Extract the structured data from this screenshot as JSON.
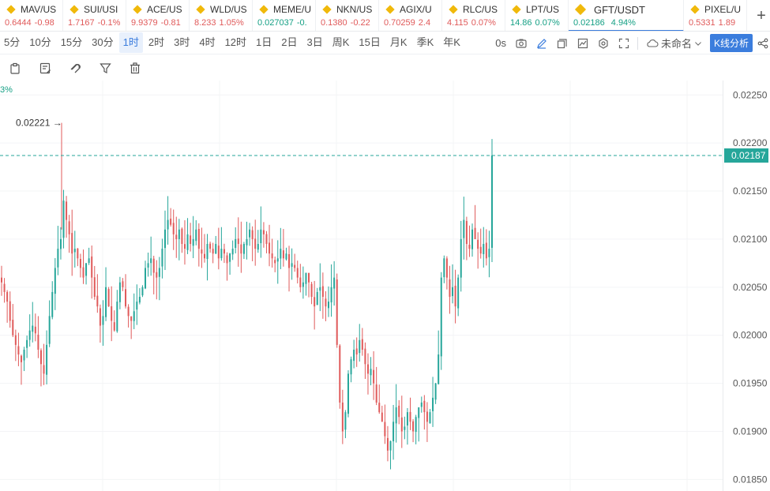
{
  "tickers": [
    {
      "symbol": "MAV/US",
      "price": "0.6444",
      "change": "-0.98",
      "dir": "neg"
    },
    {
      "symbol": "SUI/USI",
      "price": "1.7167",
      "change": "-0.1%",
      "dir": "neg"
    },
    {
      "symbol": "ACE/US",
      "price": "9.9379",
      "change": "-0.81",
      "dir": "neg"
    },
    {
      "symbol": "WLD/US",
      "price": "8.233",
      "change": "1.05%",
      "dir": "neg"
    },
    {
      "symbol": "MEME/U",
      "price": "0.027037",
      "change": "-0.",
      "dir": "pos"
    },
    {
      "symbol": "NKN/US",
      "price": "0.1380",
      "change": "-0.22",
      "dir": "neg"
    },
    {
      "symbol": "AGIX/U",
      "price": "0.70259",
      "change": "2.4",
      "dir": "neg"
    },
    {
      "symbol": "RLC/US",
      "price": "4.115",
      "change": "0.07%",
      "dir": "neg"
    },
    {
      "symbol": "LPT/US",
      "price": "14.86",
      "change": "0.07%",
      "dir": "pos"
    }
  ],
  "active_ticker": {
    "symbol": "GFT/USDT",
    "price": "0.02186",
    "change": "4.94%"
  },
  "last_ticker": {
    "symbol": "PIXEL/U",
    "price": "0.5331",
    "change": "1.89"
  },
  "add_symbol": "+",
  "intervals": [
    "5分",
    "10分",
    "15分",
    "30分",
    "1时",
    "2时",
    "3时",
    "4时",
    "12时",
    "1日",
    "2日",
    "3日",
    "周K",
    "15日",
    "月K",
    "季K",
    "年K"
  ],
  "selected_interval": "1时",
  "toolbar": {
    "countdown": "0s",
    "layout_name": "未命名",
    "analysis_button": "K线分析"
  },
  "chart_data": {
    "type": "candlestick",
    "symbol": "GFT/USDT",
    "interval": "1时",
    "y_ticks": [
      0.0225,
      0.022,
      0.0215,
      0.021,
      0.0205,
      0.02,
      0.0195,
      0.019,
      0.0185
    ],
    "y_tick_labels": [
      "0.02250",
      "0.02200",
      "0.02150",
      "0.02100",
      "0.02050",
      "0.02000",
      "0.01950",
      "0.01900",
      "0.01850"
    ],
    "ylim": [
      0.01838,
      0.02265
    ],
    "last_price": 0.02187,
    "last_price_label": "0.02187",
    "max_marker": {
      "value": 0.02221,
      "label": "0.02221"
    },
    "partial_left_label": "3%",
    "colors": {
      "up": "#26a69a",
      "down": "#e05a5a",
      "last": "#26a69a"
    },
    "closes": [
      0.02055,
      0.02045,
      0.02035,
      0.02015,
      0.02,
      0.0199,
      0.0198,
      0.01972,
      0.01985,
      0.01995,
      0.02005,
      0.0201,
      0.02002,
      0.01985,
      0.0197,
      0.0196,
      0.0199,
      0.0202,
      0.02045,
      0.0207,
      0.0209,
      0.021,
      0.0214,
      0.0212,
      0.02105,
      0.02085,
      0.0209,
      0.0208,
      0.0207,
      0.0206,
      0.02075,
      0.0208,
      0.0206,
      0.0204,
      0.0203,
      0.0201,
      0.0202,
      0.0205,
      0.0203,
      0.02015,
      0.02005,
      0.02035,
      0.02055,
      0.0205,
      0.0203,
      0.0202,
      0.02015,
      0.02025,
      0.02035,
      0.0204,
      0.0205,
      0.0207,
      0.02075,
      0.0208,
      0.02065,
      0.0206,
      0.0207,
      0.0209,
      0.0211,
      0.0212,
      0.02115,
      0.02105,
      0.021,
      0.0211,
      0.02095,
      0.0209,
      0.02105,
      0.02095,
      0.021,
      0.0211,
      0.0209,
      0.02085,
      0.0208,
      0.02095,
      0.0209,
      0.02085,
      0.02095,
      0.0208,
      0.0209,
      0.02085,
      0.02075,
      0.02085,
      0.0209,
      0.021,
      0.02095,
      0.02085,
      0.02095,
      0.021,
      0.0211,
      0.021,
      0.0209,
      0.02095,
      0.0211,
      0.02105,
      0.02095,
      0.02085,
      0.0208,
      0.02075,
      0.0208,
      0.0209,
      0.0208,
      0.02085,
      0.0207,
      0.02075,
      0.0207,
      0.0206,
      0.0205,
      0.02055,
      0.02065,
      0.02055,
      0.0204,
      0.0203,
      0.02045,
      0.0205,
      0.0204,
      0.0203,
      0.02035,
      0.0205,
      0.0206,
      0.0199,
      0.0193,
      0.019,
      0.0192,
      0.0196,
      0.01975,
      0.01985,
      0.0198,
      0.01995,
      0.01985,
      0.0197,
      0.0196,
      0.01965,
      0.0195,
      0.0193,
      0.0192,
      0.0191,
      0.01895,
      0.0188,
      0.0189,
      0.0191,
      0.01925,
      0.01915,
      0.019,
      0.01905,
      0.0192,
      0.0191,
      0.019,
      0.01915,
      0.01925,
      0.0193,
      0.0192,
      0.0191,
      0.0192,
      0.01935,
      0.0195,
      0.0198,
      0.0206,
      0.0208,
      0.0206,
      0.0204,
      0.0205,
      0.0203,
      0.0206,
      0.021,
      0.0212,
      0.02095,
      0.0209,
      0.0211,
      0.021,
      0.0209,
      0.02085,
      0.02095,
      0.0208,
      0.0209,
      0.02187
    ]
  }
}
